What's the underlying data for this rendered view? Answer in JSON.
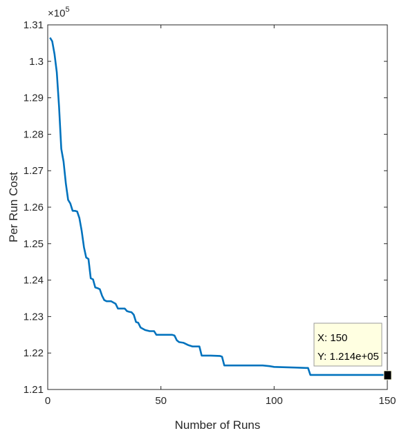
{
  "chart_data": {
    "type": "line",
    "title": "",
    "xlabel": "Number of Runs",
    "ylabel": "Per Run Cost",
    "xlim": [
      0,
      150
    ],
    "ylim": [
      1.21,
      1.31
    ],
    "y_multiplier_label": "×10",
    "y_multiplier_exponent": "5",
    "x_ticks": [
      0,
      50,
      100,
      150
    ],
    "x_tick_labels": [
      "0",
      "50",
      "100",
      "150"
    ],
    "y_ticks": [
      1.21,
      1.22,
      1.23,
      1.24,
      1.25,
      1.26,
      1.27,
      1.28,
      1.29,
      1.3,
      1.31
    ],
    "y_tick_labels": [
      "1.21",
      "1.22",
      "1.23",
      "1.24",
      "1.25",
      "1.26",
      "1.27",
      "1.28",
      "1.29",
      "1.3",
      "1.31"
    ],
    "grid": false,
    "line_color": "#0072BD",
    "series": [
      {
        "x": [
          1,
          2,
          3,
          4,
          5,
          6,
          7,
          8,
          9,
          10,
          11,
          12,
          13,
          14,
          15,
          16,
          17,
          18,
          19,
          20,
          21,
          22,
          23,
          24,
          25,
          26,
          28,
          30,
          31,
          33,
          34,
          35,
          36,
          37,
          38,
          39,
          40,
          41,
          43,
          45,
          47,
          48,
          50,
          52,
          55,
          56,
          57,
          58,
          60,
          62,
          64,
          66,
          67,
          68,
          69,
          72,
          76,
          77,
          78,
          80,
          85,
          90,
          95,
          98,
          100,
          105,
          110,
          114,
          115,
          116,
          120,
          130,
          140,
          145,
          150
        ],
        "y": [
          1.3065,
          1.3055,
          1.302,
          1.297,
          1.2875,
          1.276,
          1.2725,
          1.2665,
          1.262,
          1.261,
          1.259,
          1.259,
          1.2588,
          1.257,
          1.2535,
          1.249,
          1.2462,
          1.2458,
          1.2405,
          1.2402,
          1.238,
          1.2378,
          1.2375,
          1.2357,
          1.2345,
          1.2342,
          1.2342,
          1.2335,
          1.2322,
          1.2322,
          1.2322,
          1.2315,
          1.2313,
          1.2312,
          1.2305,
          1.2285,
          1.2283,
          1.227,
          1.2263,
          1.226,
          1.226,
          1.225,
          1.225,
          1.225,
          1.225,
          1.2248,
          1.2235,
          1.223,
          1.2228,
          1.2222,
          1.2218,
          1.2218,
          1.2218,
          1.2193,
          1.2193,
          1.2193,
          1.2192,
          1.219,
          1.2166,
          1.2166,
          1.2166,
          1.2166,
          1.2166,
          1.2164,
          1.2162,
          1.2161,
          1.216,
          1.2159,
          1.2159,
          1.214,
          1.214,
          1.214,
          1.214,
          1.214,
          1.214
        ]
      }
    ],
    "datatip": {
      "x_label": "X: 150",
      "y_label": "Y: 1.214e+05",
      "x": 150,
      "y": 1.214
    }
  }
}
